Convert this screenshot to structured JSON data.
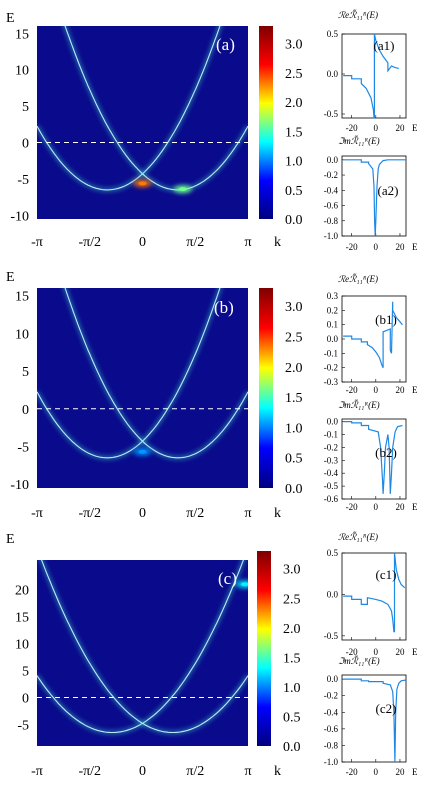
{
  "colors": {
    "background": "#0a0a8c",
    "band": "#bfe6ff",
    "glow": "#39d6c0",
    "dash": "#ffffff",
    "curve": "#1e88e5"
  },
  "chart_data": [
    {
      "type": "heatmap",
      "panel": "(a)",
      "ylabel": "E",
      "xlabel": "k",
      "yticks": [
        "15",
        "10",
        "5",
        "0",
        "-5",
        "-10"
      ],
      "ytick_values": [
        15,
        10,
        5,
        0,
        -5,
        -10
      ],
      "ylim": [
        -10.5,
        16
      ],
      "xticks": [
        "-π",
        "-π/2",
        "0",
        "π/2",
        "π"
      ],
      "xlim": [
        -3.1416,
        3.1416
      ],
      "colorbar": {
        "ticks": [
          "3.0",
          "2.5",
          "2.0",
          "1.5",
          "1.0",
          "0.5",
          "0.0"
        ],
        "range": [
          0,
          3.3
        ],
        "colors": [
          "#00007f",
          "#0000ff",
          "#00ffff",
          "#ffff00",
          "#ff0000",
          "#7f0000"
        ]
      },
      "dashed_line_E": 0,
      "bands": [
        {
          "min_E": -6.5,
          "curvature": 2.0,
          "shift_k": -1.05
        },
        {
          "min_E": -6.5,
          "curvature": 2.0,
          "shift_k": 1.05
        }
      ],
      "hotspots": [
        {
          "k": 0.0,
          "E": -5.6,
          "intensity": 2.5
        },
        {
          "k": 1.2,
          "E": -6.4,
          "intensity": 1.6
        }
      ]
    },
    {
      "type": "line",
      "panel": "(a1)",
      "ylabel": "ℛeℛ̃₁₁ᴿ(E)",
      "xlabel": "E",
      "xticks": [
        "-20",
        "0",
        "20"
      ],
      "xtick_values": [
        -20,
        0,
        20
      ],
      "xlim": [
        -28,
        25
      ],
      "yticks": [
        "0.5",
        "0.0",
        "-0.5"
      ],
      "ytick_values": [
        0.5,
        0,
        -0.5
      ],
      "ylim": [
        -0.55,
        0.5
      ],
      "series": [
        {
          "x": [
            -27,
            -20,
            -20,
            -12,
            -12,
            -8,
            -4,
            -2,
            -1.5,
            -1.2,
            -1.2,
            0,
            3,
            6,
            8,
            10,
            10,
            13,
            16,
            19
          ],
          "y": [
            -0.02,
            -0.02,
            -0.06,
            -0.06,
            -0.12,
            -0.18,
            -0.3,
            -0.45,
            -0.55,
            -0.55,
            0.5,
            0.42,
            0.3,
            0.22,
            0.18,
            0.14,
            0.04,
            0.1,
            0.08,
            0.07
          ]
        }
      ]
    },
    {
      "type": "line",
      "panel": "(a2)",
      "ylabel": "ℑmℛ̃₁₁ᴿ(E)",
      "xlabel": "E",
      "xticks": [
        "-20",
        "0",
        "20"
      ],
      "xtick_values": [
        -20,
        0,
        20
      ],
      "xlim": [
        -28,
        25
      ],
      "yticks": [
        "0.0",
        "-0.2",
        "-0.4",
        "-0.6",
        "-0.8",
        "-1.0"
      ],
      "ytick_values": [
        0,
        -0.2,
        -0.4,
        -0.6,
        -0.8,
        -1.0
      ],
      "ylim": [
        -1.0,
        0.05
      ],
      "series": [
        {
          "x": [
            -27,
            -12,
            -12,
            -6,
            -6,
            -2.5,
            -1.5,
            -1,
            -0.5,
            0,
            1,
            2,
            3,
            6,
            10,
            25
          ],
          "y": [
            0,
            0,
            -0.03,
            -0.03,
            -0.05,
            -0.12,
            -0.35,
            -0.8,
            -1.0,
            -0.8,
            -0.35,
            -0.12,
            -0.06,
            -0.01,
            0,
            0
          ]
        }
      ]
    },
    {
      "type": "heatmap",
      "panel": "(b)",
      "ylabel": "E",
      "xlabel": "k",
      "yticks": [
        "15",
        "10",
        "5",
        "0",
        "-5",
        "-10"
      ],
      "ytick_values": [
        15,
        10,
        5,
        0,
        -5,
        -10
      ],
      "ylim": [
        -10.5,
        16
      ],
      "xticks": [
        "-π",
        "-π/2",
        "0",
        "π/2",
        "π"
      ],
      "xlim": [
        -3.1416,
        3.1416
      ],
      "colorbar": {
        "ticks": [
          "3.0",
          "2.5",
          "2.0",
          "1.5",
          "1.0",
          "0.5",
          "0.0"
        ],
        "range": [
          0,
          3.3
        ],
        "colors": [
          "#00007f",
          "#0000ff",
          "#00ffff",
          "#ffff00",
          "#ff0000",
          "#7f0000"
        ]
      },
      "dashed_line_E": 0,
      "bands": [
        {
          "min_E": -6.5,
          "curvature": 2.0,
          "shift_k": -1.05
        },
        {
          "min_E": -6.5,
          "curvature": 2.0,
          "shift_k": 1.05
        }
      ],
      "hotspots": [
        {
          "k": 0.0,
          "E": -5.7,
          "intensity": 0.9
        }
      ]
    },
    {
      "type": "line",
      "panel": "(b1)",
      "ylabel": "ℛeℛ̃₁₁ᴿ(E)",
      "xlabel": "E",
      "xticks": [
        "-20",
        "0",
        "20"
      ],
      "xtick_values": [
        -20,
        0,
        20
      ],
      "xlim": [
        -28,
        25
      ],
      "yticks": [
        "0.3",
        "0.2",
        "0.1",
        "0.0",
        "-0.1",
        "-0.2",
        "-0.3"
      ],
      "ytick_values": [
        0.3,
        0.2,
        0.1,
        0,
        -0.1,
        -0.2,
        -0.3
      ],
      "ylim": [
        -0.3,
        0.3
      ],
      "series": [
        {
          "x": [
            -27,
            -20,
            -20,
            -12,
            -12,
            -7,
            -7,
            -3,
            0,
            3,
            5,
            6,
            6,
            9,
            12,
            12,
            13,
            14,
            14,
            17,
            20,
            22
          ],
          "y": [
            0.02,
            0.02,
            0.0,
            0.0,
            -0.02,
            -0.02,
            -0.04,
            -0.06,
            -0.09,
            -0.13,
            -0.18,
            -0.2,
            0.05,
            0.06,
            0.07,
            -0.08,
            -0.1,
            0.26,
            0.2,
            0.15,
            0.12,
            0.1
          ]
        }
      ]
    },
    {
      "type": "line",
      "panel": "(b2)",
      "ylabel": "ℑmℛ̃₁₁ᴿ(E)",
      "xlabel": "E",
      "xticks": [
        "-20",
        "0",
        "20"
      ],
      "xtick_values": [
        -20,
        0,
        20
      ],
      "xlim": [
        -28,
        25
      ],
      "yticks": [
        "0.0",
        "-0.1",
        "-0.2",
        "-0.3",
        "-0.4",
        "-0.5",
        "-0.6"
      ],
      "ytick_values": [
        0,
        -0.1,
        -0.2,
        -0.3,
        -0.4,
        -0.5,
        -0.6
      ],
      "ylim": [
        -0.6,
        0.02
      ],
      "series": [
        {
          "x": [
            -27,
            -20,
            -20,
            -12,
            -12,
            -6,
            -6,
            2,
            4,
            5.5,
            6,
            7,
            8,
            10,
            11,
            12,
            13,
            14,
            16,
            18,
            22
          ],
          "y": [
            0,
            0,
            -0.01,
            -0.01,
            -0.03,
            -0.03,
            -0.06,
            -0.08,
            -0.2,
            -0.45,
            -0.56,
            -0.4,
            -0.2,
            -0.1,
            -0.2,
            -0.56,
            -0.4,
            -0.2,
            -0.08,
            -0.04,
            -0.03
          ]
        }
      ]
    },
    {
      "type": "heatmap",
      "panel": "(c)",
      "ylabel": "E",
      "xlabel": "k",
      "yticks": [
        "20",
        "15",
        "10",
        "5",
        "0",
        "-5"
      ],
      "ytick_values": [
        20,
        15,
        10,
        5,
        0,
        -5
      ],
      "ylim": [
        -9,
        25.5
      ],
      "xticks": [
        "-π",
        "-π/2",
        "0",
        "π/2",
        "π"
      ],
      "xlim": [
        -3.1416,
        3.1416
      ],
      "colorbar": {
        "ticks": [
          "3.0",
          "2.5",
          "2.0",
          "1.5",
          "1.0",
          "0.5",
          "0.0"
        ],
        "range": [
          0,
          3.3
        ],
        "colors": [
          "#00007f",
          "#0000ff",
          "#00ffff",
          "#ffff00",
          "#ff0000",
          "#7f0000"
        ]
      },
      "dashed_line_E": 0,
      "bands": [
        {
          "min_E": -6.5,
          "curvature": 2.1,
          "shift_k": -0.9
        },
        {
          "min_E": -6.5,
          "curvature": 2.1,
          "shift_k": 0.9
        }
      ],
      "hotspots": [
        {
          "k": 3.05,
          "E": 21,
          "intensity": 1.2
        }
      ]
    },
    {
      "type": "line",
      "panel": "(c1)",
      "ylabel": "ℛeℛ̃₁₁ᴿ(E)",
      "xlabel": "E",
      "xticks": [
        "-20",
        "0",
        "20"
      ],
      "xtick_values": [
        -20,
        0,
        20
      ],
      "xlim": [
        -28,
        25
      ],
      "yticks": [
        "0.5",
        "0.0",
        "-0.5"
      ],
      "ytick_values": [
        0.5,
        0,
        -0.5
      ],
      "ylim": [
        -0.55,
        0.5
      ],
      "series": [
        {
          "x": [
            -27,
            -20,
            -20,
            -12,
            -12,
            -7,
            -7,
            0,
            5,
            10,
            13,
            14,
            15,
            15.5,
            15.5,
            17,
            19,
            21,
            24
          ],
          "y": [
            -0.02,
            -0.02,
            -0.06,
            -0.06,
            -0.12,
            -0.12,
            -0.04,
            -0.06,
            -0.08,
            -0.12,
            -0.2,
            -0.3,
            -0.45,
            -0.45,
            0.5,
            0.3,
            0.18,
            0.12,
            0.08
          ]
        }
      ]
    },
    {
      "type": "line",
      "panel": "(c2)",
      "ylabel": "ℑmℛ̃₁₁ᴿ(E)",
      "xlabel": "E",
      "xticks": [
        "-20",
        "0",
        "20"
      ],
      "xtick_values": [
        -20,
        0,
        20
      ],
      "xlim": [
        -28,
        25
      ],
      "yticks": [
        "0.0",
        "-0.2",
        "-0.4",
        "-0.6",
        "-0.8",
        "-1.0"
      ],
      "ytick_values": [
        0,
        -0.2,
        -0.4,
        -0.6,
        -0.8,
        -1.0
      ],
      "ylim": [
        -1.0,
        0.05
      ],
      "series": [
        {
          "x": [
            -27,
            -12,
            -12,
            -6,
            -6,
            6,
            6,
            12,
            14,
            15,
            15.8,
            16.5,
            17.5,
            19,
            21,
            25
          ],
          "y": [
            0,
            0,
            -0.02,
            -0.02,
            -0.03,
            -0.03,
            -0.05,
            -0.07,
            -0.15,
            -0.4,
            -1.0,
            -0.4,
            -0.12,
            -0.05,
            -0.02,
            -0.01
          ]
        }
      ]
    }
  ]
}
